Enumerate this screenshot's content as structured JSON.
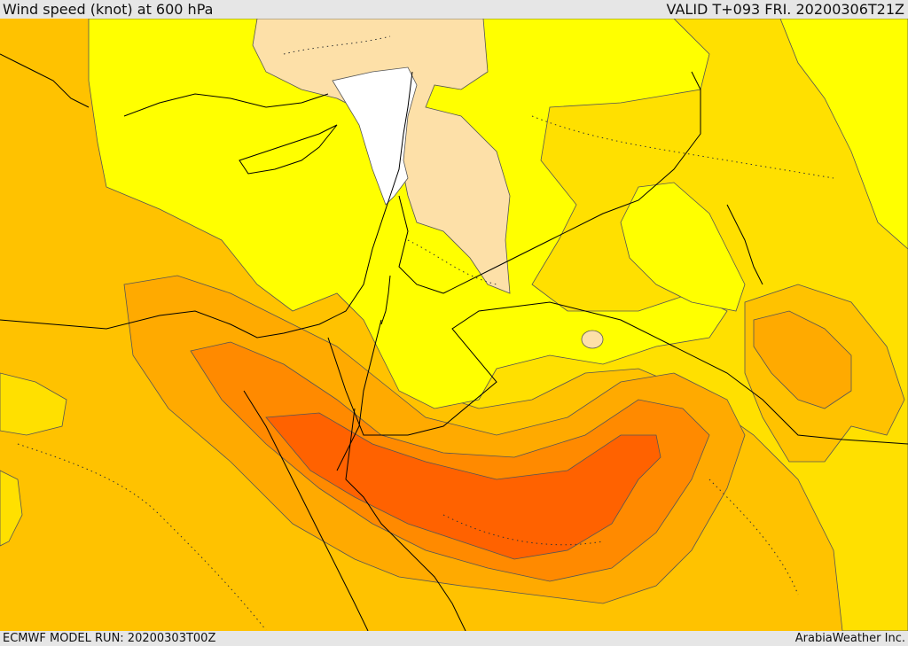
{
  "header": {
    "title": "Wind speed (knot) at 600 hPa",
    "valid": "VALID T+093 FRI. 20200306T21Z"
  },
  "footer": {
    "model_run": "ECMWF MODEL RUN: 20200303T00Z",
    "credit": "ArabiaWeather Inc."
  },
  "palette": {
    "band_white": "#ffffff",
    "band_tan": "#fde0a8",
    "band_yellow": "#ffff00",
    "band_yellow_gold": "#ffe000",
    "band_gold": "#ffc200",
    "band_amber": "#ffaa00",
    "band_orange": "#ff8a00",
    "band_deep_orange": "#ff6200",
    "coastline": "#000000",
    "contour": "#555555"
  }
}
